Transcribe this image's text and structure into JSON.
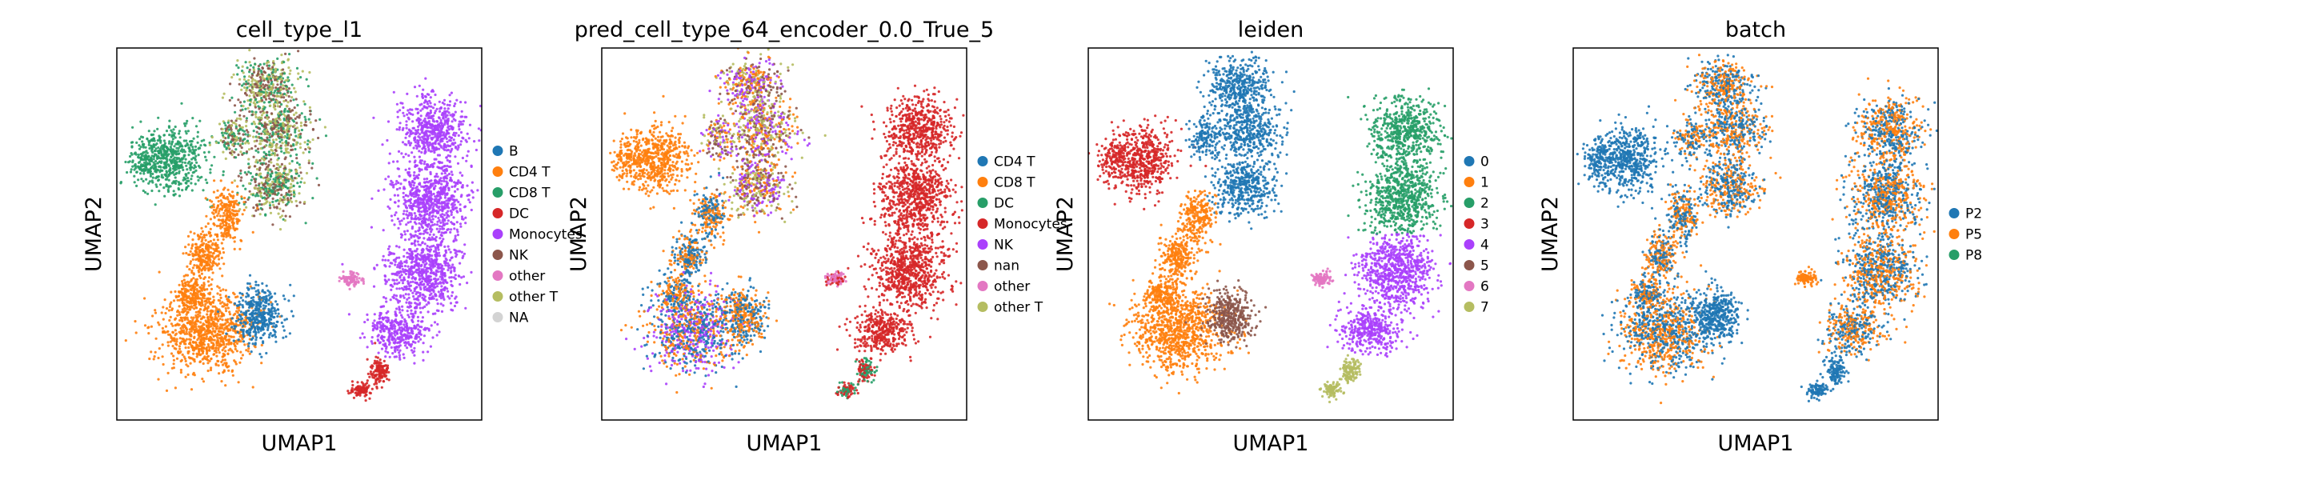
{
  "chart_data": [
    {
      "type": "scatter",
      "title": "cell_type_l1",
      "xlabel": "UMAP1",
      "ylabel": "UMAP2",
      "legend_position": "right",
      "legend": [
        {
          "label": "B",
          "color": "#1f77b4"
        },
        {
          "label": "CD4 T",
          "color": "#ff7f0e"
        },
        {
          "label": "CD8 T",
          "color": "#279e68"
        },
        {
          "label": "DC",
          "color": "#d62728"
        },
        {
          "label": "Monocytes",
          "color": "#aa40fc"
        },
        {
          "label": "NK",
          "color": "#8c564b"
        },
        {
          "label": "other",
          "color": "#e377c2"
        },
        {
          "label": "other T",
          "color": "#b5bd61"
        },
        {
          "label": "NA",
          "color": "#d3d3d3"
        }
      ]
    },
    {
      "type": "scatter",
      "title": "pred_cell_type_64_encoder_0.0_True_5",
      "xlabel": "UMAP1",
      "ylabel": "UMAP2",
      "legend_position": "right",
      "legend": [
        {
          "label": "CD4 T",
          "color": "#1f77b4"
        },
        {
          "label": "CD8 T",
          "color": "#ff7f0e"
        },
        {
          "label": "DC",
          "color": "#279e68"
        },
        {
          "label": "Monocytes",
          "color": "#d62728"
        },
        {
          "label": "NK",
          "color": "#aa40fc"
        },
        {
          "label": "nan",
          "color": "#8c564b"
        },
        {
          "label": "other",
          "color": "#e377c2"
        },
        {
          "label": "other T",
          "color": "#b5bd61"
        }
      ]
    },
    {
      "type": "scatter",
      "title": "leiden",
      "xlabel": "UMAP1",
      "ylabel": "UMAP2",
      "legend_position": "right",
      "legend": [
        {
          "label": "0",
          "color": "#1f77b4"
        },
        {
          "label": "1",
          "color": "#ff7f0e"
        },
        {
          "label": "2",
          "color": "#279e68"
        },
        {
          "label": "3",
          "color": "#d62728"
        },
        {
          "label": "4",
          "color": "#aa40fc"
        },
        {
          "label": "5",
          "color": "#8c564b"
        },
        {
          "label": "6",
          "color": "#e377c2"
        },
        {
          "label": "7",
          "color": "#b5bd61"
        }
      ]
    },
    {
      "type": "scatter",
      "title": "batch",
      "xlabel": "UMAP1",
      "ylabel": "UMAP2",
      "legend_position": "right",
      "legend": [
        {
          "label": "P2",
          "color": "#1f77b4"
        },
        {
          "label": "P5",
          "color": "#ff7f0e"
        },
        {
          "label": "P8",
          "color": "#279e68"
        }
      ]
    }
  ]
}
